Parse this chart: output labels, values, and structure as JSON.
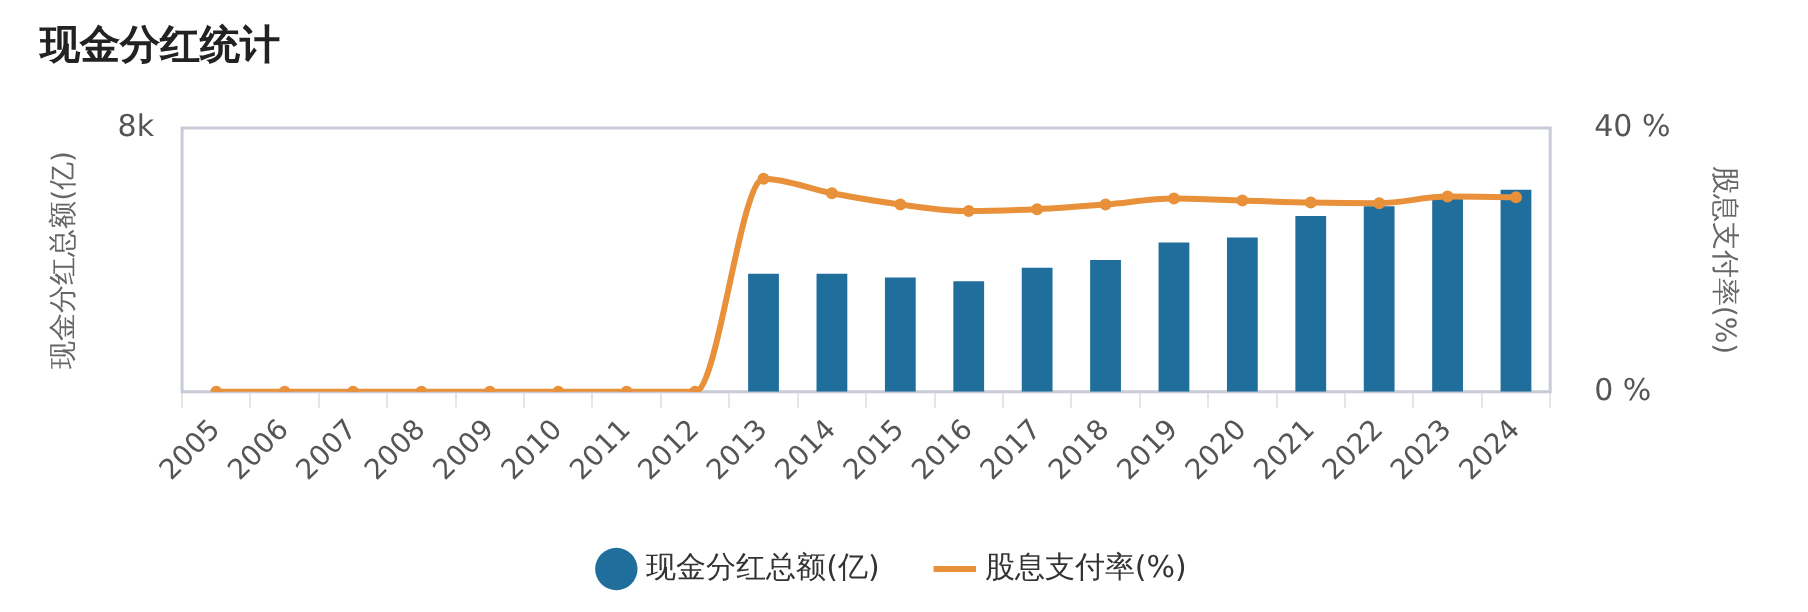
{
  "chart_data": {
    "type": "bar",
    "title": "现金分红统计",
    "categories": [
      "2005",
      "2006",
      "2007",
      "2008",
      "2009",
      "2010",
      "2011",
      "2012",
      "2013",
      "2014",
      "2015",
      "2016",
      "2017",
      "2018",
      "2019",
      "2020",
      "2021",
      "2022",
      "2023",
      "2024"
    ],
    "series": [
      {
        "name": "现金分红总额(亿)",
        "color": "#1f6e9c",
        "values": [
          0,
          0,
          0,
          0,
          0,
          0,
          0,
          0,
          3580,
          3580,
          3470,
          3350,
          3760,
          4000,
          4530,
          4680,
          5330,
          5630,
          5930,
          6130
        ]
      },
      {
        "name": "股息支付率(%)",
        "type": "line",
        "axis": "y2",
        "color": "#e8913a",
        "values": [
          0,
          0,
          0,
          0,
          0,
          0,
          0,
          0,
          32.3,
          30.1,
          28.4,
          27.4,
          27.7,
          28.4,
          29.3,
          29.0,
          28.7,
          28.6,
          29.6,
          29.5
        ]
      }
    ],
    "ylabel": "现金分红总额(亿)",
    "y2label": "股息支付率(%)",
    "ylim": [
      0,
      8000
    ],
    "yticks": [
      0,
      {
        "value": 8000,
        "label": "8k"
      }
    ],
    "y2lim": [
      0,
      40
    ],
    "y2ticks": [
      {
        "value": 0,
        "label": "0 %"
      },
      {
        "value": 40,
        "label": "40 %"
      }
    ],
    "grid": false,
    "legend": "bottom",
    "marker": "circle",
    "line_style": "solid"
  }
}
